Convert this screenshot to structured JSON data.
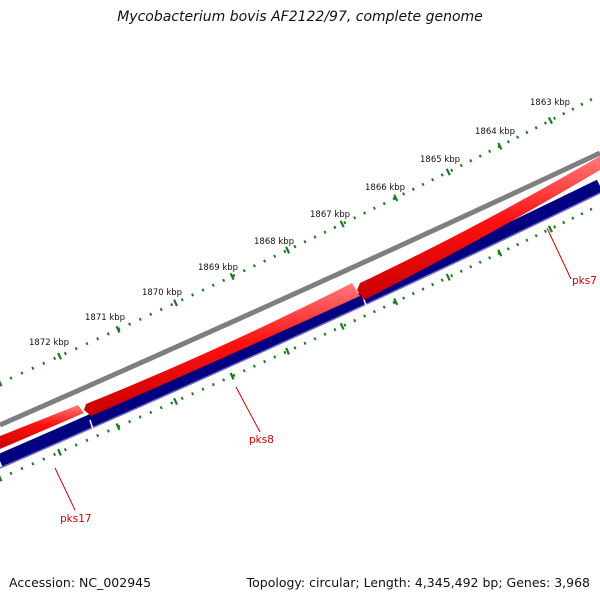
{
  "title": "Mycobacterium bovis AF2122/97, complete genome",
  "footer": {
    "accession": "Accession: NC_002945",
    "summary": "Topology: circular; Length: 4,345,492 bp; Genes: 3,968"
  },
  "ruler": {
    "labels": [
      "1863 kbp",
      "1864 kbp",
      "1865 kbp",
      "1866 kbp",
      "1867 kbp",
      "1868 kbp",
      "1869 kbp",
      "1870 kbp",
      "1871 kbp",
      "1872 kbp"
    ]
  },
  "genes": [
    {
      "name": "pks7",
      "strand": "forward"
    },
    {
      "name": "pks8",
      "strand": "forward"
    },
    {
      "name": "pks17",
      "strand": "forward"
    }
  ],
  "colors": {
    "backbone": "#7f7f7f",
    "forward_genes": "#ff0000",
    "reverse_track": "#000080",
    "ticks": "#1e7a1e",
    "gene_labels": "#cc0000",
    "callouts": "#cc0000"
  }
}
